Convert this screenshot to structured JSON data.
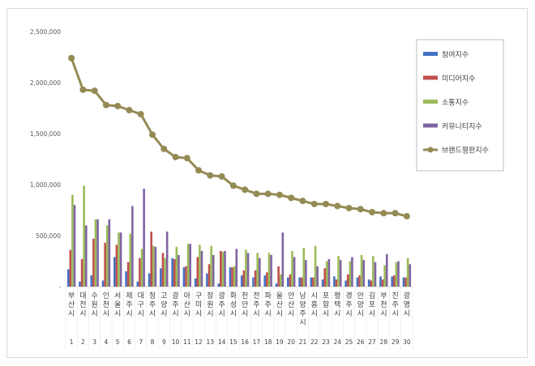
{
  "chart_data": {
    "type": "bar",
    "title": "",
    "xlabel": "",
    "ylabel": "",
    "ylim": [
      0,
      2500000
    ],
    "yticks": [
      "-",
      "500,000",
      "1,000,000",
      "1,500,000",
      "2,000,000",
      "2,500,000"
    ],
    "grid": false,
    "legend_position": "right",
    "categories": [
      "부산시",
      "대전시",
      "수원시",
      "인천시",
      "서울시",
      "제주시",
      "대구시",
      "청주시",
      "고양시",
      "광주시",
      "아산시",
      "구미시",
      "창원시",
      "광주시",
      "화성시",
      "천안시",
      "전주시",
      "파주시",
      "울산시",
      "안산시",
      "남양주시",
      "시흥시",
      "포항시",
      "평택시",
      "경주시",
      "안양시",
      "김포시",
      "부천시",
      "진주시",
      "광명시"
    ],
    "ranks": [
      "1",
      "2",
      "3",
      "4",
      "5",
      "6",
      "7",
      "8",
      "9",
      "10",
      "11",
      "12",
      "13",
      "14",
      "15",
      "16",
      "17",
      "18",
      "19",
      "20",
      "21",
      "22",
      "23",
      "24",
      "25",
      "26",
      "27",
      "28",
      "29",
      "30"
    ],
    "series": [
      {
        "name": "참여지수",
        "type": "bar",
        "color": "#4472c4",
        "values": [
          170000,
          50000,
          110000,
          60000,
          290000,
          150000,
          50000,
          130000,
          180000,
          280000,
          190000,
          80000,
          130000,
          30000,
          190000,
          110000,
          90000,
          110000,
          30000,
          90000,
          90000,
          90000,
          70000,
          100000,
          60000,
          90000,
          70000,
          100000,
          100000,
          90000
        ]
      },
      {
        "name": "미디어지수",
        "type": "bar",
        "color": "#c0504d",
        "values": [
          360000,
          270000,
          470000,
          430000,
          410000,
          240000,
          280000,
          540000,
          330000,
          270000,
          200000,
          290000,
          220000,
          350000,
          190000,
          160000,
          160000,
          140000,
          200000,
          120000,
          90000,
          90000,
          180000,
          70000,
          120000,
          110000,
          60000,
          70000,
          110000,
          90000
        ]
      },
      {
        "name": "소통지수",
        "type": "bar",
        "color": "#9bbb59",
        "values": [
          900000,
          990000,
          660000,
          600000,
          530000,
          520000,
          370000,
          400000,
          280000,
          390000,
          420000,
          410000,
          400000,
          340000,
          200000,
          360000,
          330000,
          330000,
          120000,
          350000,
          380000,
          400000,
          250000,
          300000,
          250000,
          310000,
          300000,
          210000,
          240000,
          280000
        ]
      },
      {
        "name": "커뮤니티지수",
        "type": "bar",
        "color": "#8064a2",
        "values": [
          800000,
          600000,
          660000,
          660000,
          530000,
          790000,
          960000,
          390000,
          540000,
          310000,
          420000,
          350000,
          310000,
          350000,
          370000,
          330000,
          280000,
          310000,
          530000,
          290000,
          260000,
          200000,
          270000,
          260000,
          290000,
          260000,
          240000,
          320000,
          250000,
          220000
        ]
      },
      {
        "name": "브랜드평판지수",
        "type": "line",
        "color": "#948a54",
        "values": [
          2240000,
          1930000,
          1920000,
          1780000,
          1770000,
          1730000,
          1690000,
          1490000,
          1350000,
          1270000,
          1260000,
          1140000,
          1090000,
          1080000,
          990000,
          950000,
          910000,
          910000,
          900000,
          870000,
          840000,
          810000,
          810000,
          790000,
          770000,
          760000,
          730000,
          720000,
          720000,
          690000
        ]
      }
    ]
  }
}
